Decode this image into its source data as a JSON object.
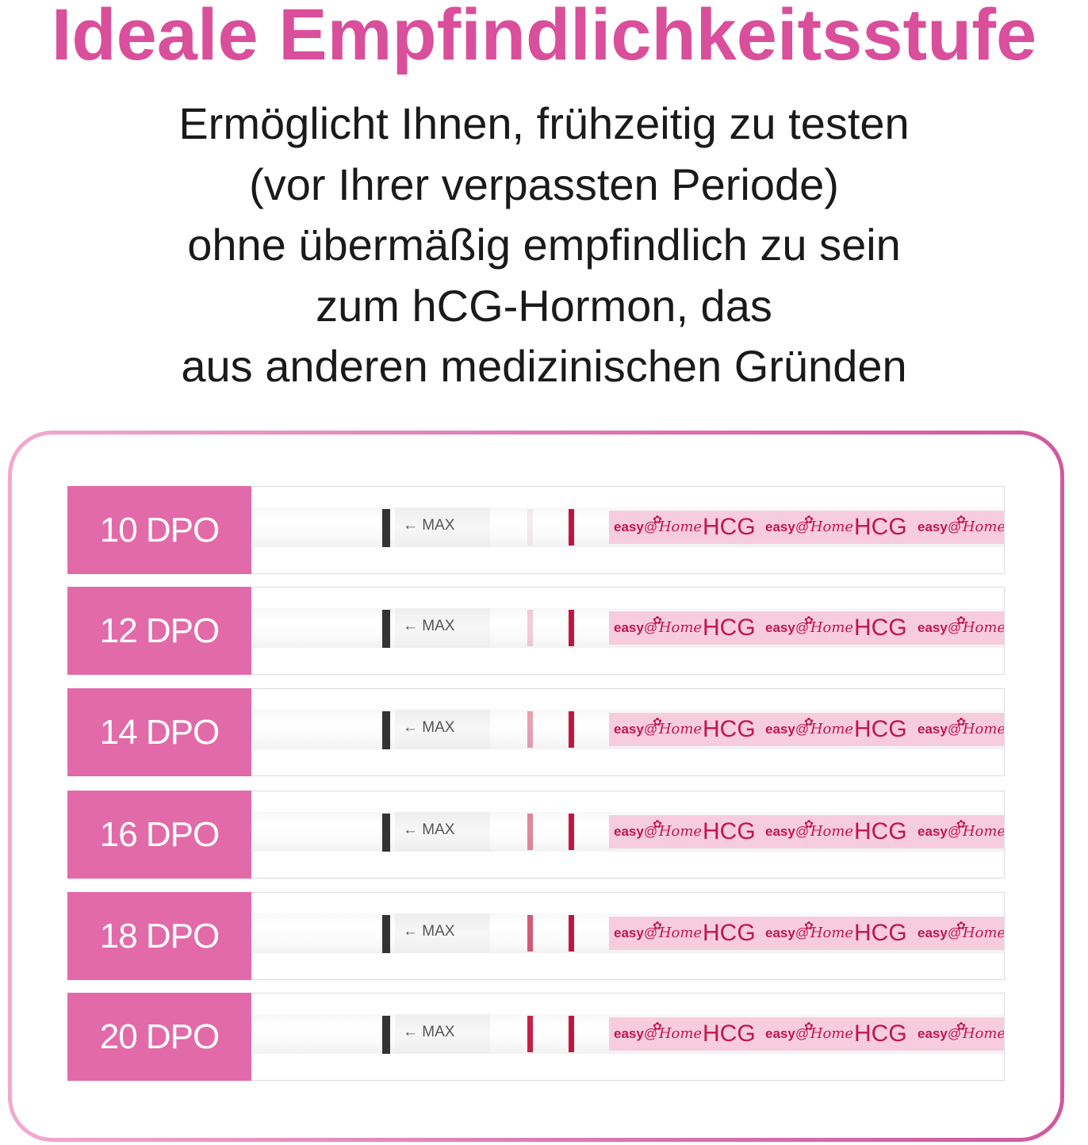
{
  "title": "Ideale Empfindlichkeitsstufe",
  "subtitle_lines": [
    "Ermöglicht Ihnen, frühzeitig zu testen",
    "(vor Ihrer verpassten Periode)",
    "ohne übermäßig empfindlich zu sein",
    "zum hCG-Hormon, das",
    "aus anderen medizinischen Gründen"
  ],
  "strip": {
    "max_text": "← MAX",
    "brand_easy": "easy",
    "brand_at": "@",
    "brand_home": "Home",
    "brand_hcg": "HCG"
  },
  "colors": {
    "accent": "#d94f9b",
    "label_bg": "#e26aa9",
    "control_line": "#c0163e"
  },
  "rows": [
    {
      "label": "10 DPO",
      "test_line_intensity": 0.05
    },
    {
      "label": "12 DPO",
      "test_line_intensity": 0.2
    },
    {
      "label": "14 DPO",
      "test_line_intensity": 0.4
    },
    {
      "label": "16 DPO",
      "test_line_intensity": 0.5
    },
    {
      "label": "18 DPO",
      "test_line_intensity": 0.7
    },
    {
      "label": "20 DPO",
      "test_line_intensity": 0.95
    }
  ]
}
